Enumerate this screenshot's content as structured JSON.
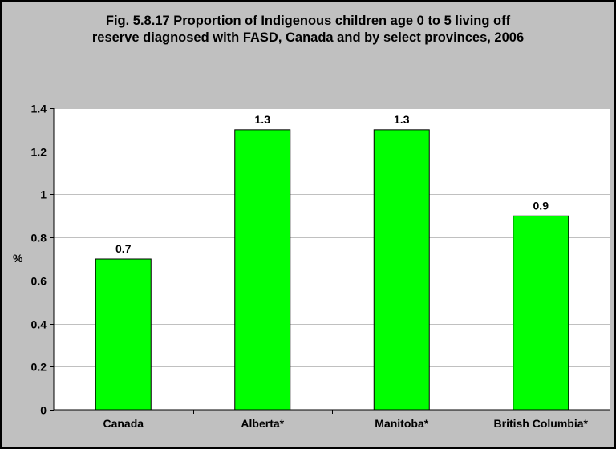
{
  "chart_data": {
    "type": "bar",
    "title_lines": [
      "Fig. 5.8.17 Proportion of Indigenous children age 0 to 5 living off",
      "reserve diagnosed with FASD, Canada and by select provinces, 2006"
    ],
    "categories": [
      "Canada",
      "Alberta*",
      "Manitoba*",
      "British Columbia*"
    ],
    "values": [
      0.7,
      1.3,
      1.3,
      0.9
    ],
    "value_labels": [
      "0.7",
      "1.3",
      "1.3",
      "0.9"
    ],
    "ylabel": "%",
    "xlabel": "",
    "ylim": [
      0,
      1.4
    ],
    "yticks": [
      0,
      0.2,
      0.4,
      0.6,
      0.8,
      1,
      1.2,
      1.4
    ],
    "ytick_labels": [
      "0",
      "0.2",
      "0.4",
      "0.6",
      "0.8",
      "1",
      "1.2",
      "1.4"
    ],
    "grid": true,
    "legend": "none",
    "colors": {
      "bar_fill": "#00ff00",
      "bar_stroke": "#000000",
      "plot_background": "#ffffff",
      "chart_background": "#c0c0c0",
      "gridline": "#c0c0c0"
    }
  }
}
